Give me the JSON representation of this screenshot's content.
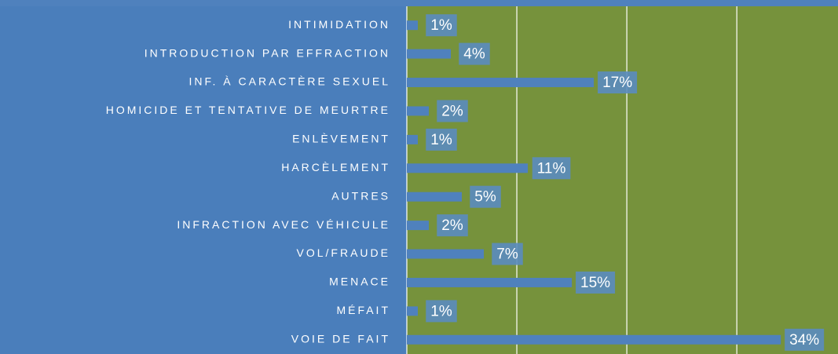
{
  "chart_data": {
    "type": "hbar",
    "categories": [
      "INTIMIDATION",
      "INTRODUCTION PAR EFFRACTION",
      "INF. À CARACTÈRE SEXUEL",
      "HOMICIDE ET TENTATIVE DE MEURTRE",
      "ENLÈVEMENT",
      "HARCÈLEMENT",
      "AUTRES",
      "INFRACTION AVEC VÉHICULE",
      "VOL/FRAUDE",
      "MENACE",
      "MÉFAIT",
      "VOIE DE FAIT"
    ],
    "values": [
      1,
      4,
      17,
      2,
      1,
      11,
      5,
      2,
      7,
      15,
      1,
      34
    ],
    "value_labels": [
      "1%",
      "4%",
      "17%",
      "2%",
      "1%",
      "11%",
      "5%",
      "2%",
      "7%",
      "15%",
      "1%",
      "34%"
    ],
    "color": "#4f81bd",
    "xlim": [
      0,
      39.2
    ],
    "xticks": [
      0,
      10,
      20,
      30
    ],
    "grid": true
  }
}
